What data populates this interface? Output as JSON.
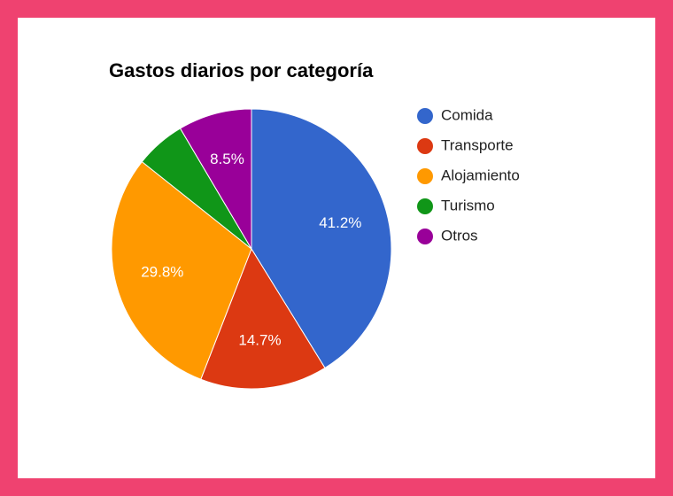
{
  "chart_data": {
    "type": "pie",
    "title": "Gastos diarios por categoría",
    "categories": [
      "Comida",
      "Transporte",
      "Alojamiento",
      "Turismo",
      "Otros"
    ],
    "values": [
      41.2,
      14.7,
      29.8,
      5.8,
      8.5
    ],
    "value_labels": [
      "41.2%",
      "14.7%",
      "29.8%",
      null,
      "8.5%"
    ],
    "colors": [
      "#3366cc",
      "#dc3912",
      "#ff9900",
      "#109618",
      "#990099"
    ],
    "legend": "right"
  }
}
